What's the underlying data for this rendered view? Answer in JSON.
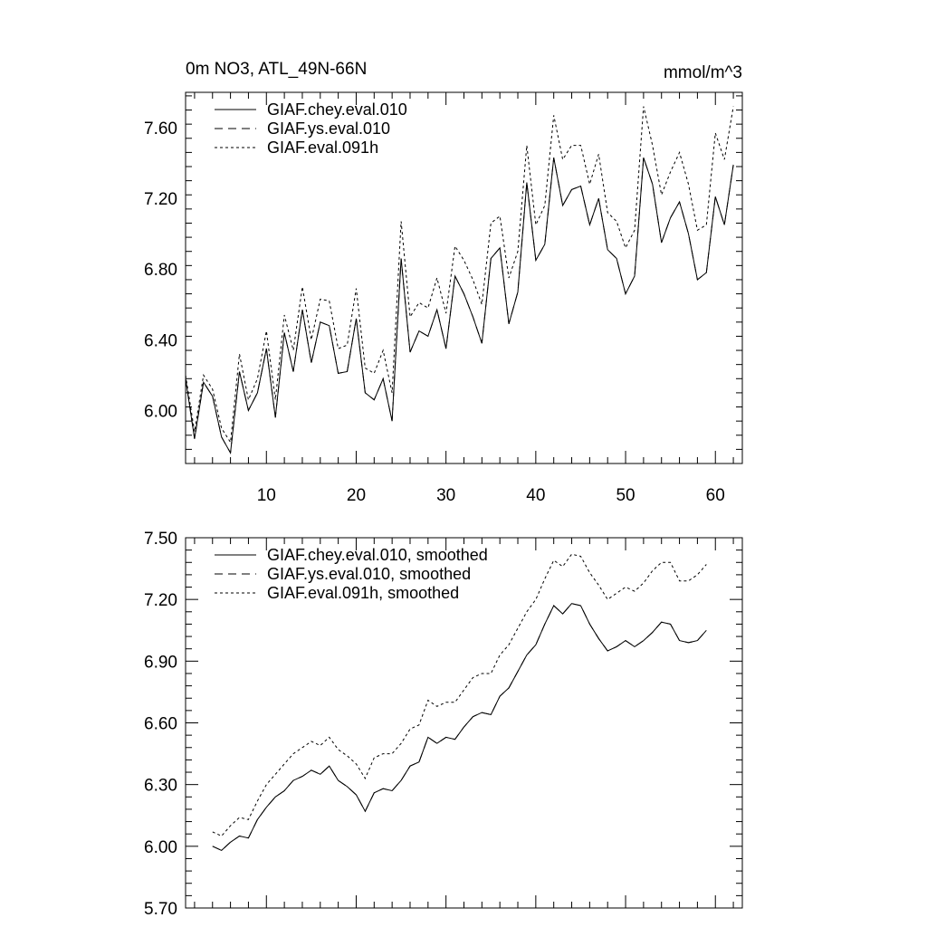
{
  "chart_data": [
    {
      "type": "line",
      "title_left": "0m NO3, ATL_49N-66N",
      "title_right": "mmol/m^3",
      "xlabel": "",
      "ylabel": "",
      "xlim": [
        1,
        63
      ],
      "ylim": [
        5.7,
        7.8
      ],
      "x_ticks": [
        10,
        20,
        30,
        40,
        50,
        60
      ],
      "x_tick_labels": [
        "10",
        "20",
        "30",
        "40",
        "50",
        "60"
      ],
      "y_ticks": [
        6.0,
        6.4,
        6.8,
        7.2,
        7.6
      ],
      "y_tick_labels": [
        "6.00",
        "6.40",
        "6.80",
        "7.20",
        "7.60"
      ],
      "grid": false,
      "legend_position": "top-left",
      "x": [
        1,
        2,
        3,
        4,
        5,
        6,
        7,
        8,
        9,
        10,
        11,
        12,
        13,
        14,
        15,
        16,
        17,
        18,
        19,
        20,
        21,
        22,
        23,
        24,
        25,
        26,
        27,
        28,
        29,
        30,
        31,
        32,
        33,
        34,
        35,
        36,
        37,
        38,
        39,
        40,
        41,
        42,
        43,
        44,
        45,
        46,
        47,
        48,
        49,
        50,
        51,
        52,
        53,
        54,
        55,
        56,
        57,
        58,
        59,
        60,
        61,
        62
      ],
      "series": [
        {
          "name": "GIAF.chey.eval.010",
          "style": "solid",
          "values": [
            6.18,
            5.84,
            6.16,
            6.08,
            5.85,
            5.76,
            6.22,
            6.0,
            6.1,
            6.35,
            5.96,
            6.44,
            6.22,
            6.57,
            6.27,
            6.5,
            6.48,
            6.21,
            6.22,
            6.52,
            6.1,
            6.06,
            6.18,
            5.94,
            6.86,
            6.33,
            6.45,
            6.42,
            6.57,
            6.35,
            6.76,
            6.66,
            6.53,
            6.38,
            6.86,
            6.92,
            6.49,
            6.67,
            7.29,
            6.85,
            6.94,
            7.43,
            7.16,
            7.25,
            7.27,
            7.05,
            7.2,
            6.91,
            6.86,
            6.66,
            6.76,
            7.43,
            7.28,
            6.95,
            7.09,
            7.18,
            7.0,
            6.74,
            6.78,
            7.21,
            7.05,
            7.39
          ]
        },
        {
          "name": "GIAF.ys.eval.010",
          "style": "dashed",
          "values": [
            6.18,
            5.84,
            6.16,
            6.08,
            5.85,
            5.76,
            6.22,
            6.0,
            6.1,
            6.35,
            5.96,
            6.44,
            6.22,
            6.57,
            6.27,
            6.5,
            6.48,
            6.21,
            6.22,
            6.52,
            6.1,
            6.06,
            6.18,
            5.94,
            6.86,
            6.33,
            6.45,
            6.42,
            6.57,
            6.35,
            6.76,
            6.66,
            6.53,
            6.38,
            6.86,
            6.92,
            6.49,
            6.67,
            7.29,
            6.85,
            6.94,
            7.43,
            7.16,
            7.25,
            7.27,
            7.05,
            7.2,
            6.91,
            6.86,
            6.66,
            6.76,
            7.43,
            7.28,
            6.95,
            7.09,
            7.18,
            7.0,
            6.74,
            6.78,
            7.21,
            7.05,
            7.39
          ]
        },
        {
          "name": "GIAF.eval.091h",
          "style": "dotted",
          "values": [
            6.2,
            5.88,
            6.2,
            6.12,
            5.9,
            5.82,
            6.32,
            6.06,
            6.18,
            6.45,
            6.06,
            6.54,
            6.34,
            6.7,
            6.4,
            6.63,
            6.62,
            6.35,
            6.37,
            6.69,
            6.24,
            6.21,
            6.34,
            6.1,
            7.07,
            6.53,
            6.61,
            6.58,
            6.75,
            6.55,
            6.93,
            6.85,
            6.74,
            6.6,
            7.06,
            7.1,
            6.75,
            6.9,
            7.5,
            7.05,
            7.16,
            7.67,
            7.42,
            7.5,
            7.5,
            7.28,
            7.45,
            7.12,
            7.07,
            6.92,
            7.02,
            7.72,
            7.5,
            7.22,
            7.35,
            7.46,
            7.28,
            7.02,
            7.05,
            7.57,
            7.42,
            7.72
          ]
        }
      ]
    },
    {
      "type": "line",
      "title_left": "",
      "title_right": "",
      "xlabel": "",
      "ylabel": "",
      "xlim": [
        1,
        63
      ],
      "ylim": [
        5.7,
        7.5
      ],
      "x_ticks": [
        10,
        20,
        30,
        40,
        50,
        60
      ],
      "x_tick_labels": [],
      "y_ticks": [
        5.7,
        6.0,
        6.3,
        6.6,
        6.9,
        7.2,
        7.5
      ],
      "y_tick_labels": [
        "5.70",
        "6.00",
        "6.30",
        "6.60",
        "6.90",
        "7.20",
        "7.50"
      ],
      "grid": false,
      "legend_position": "top-left",
      "x": [
        4,
        5,
        6,
        7,
        8,
        9,
        10,
        11,
        12,
        13,
        14,
        15,
        16,
        17,
        18,
        19,
        20,
        21,
        22,
        23,
        24,
        25,
        26,
        27,
        28,
        29,
        30,
        31,
        32,
        33,
        34,
        35,
        36,
        37,
        38,
        39,
        40,
        41,
        42,
        43,
        44,
        45,
        46,
        47,
        48,
        49,
        50,
        51,
        52,
        53,
        54,
        55,
        56,
        57,
        58,
        59
      ],
      "series": [
        {
          "name": "GIAF.chey.eval.010, smoothed",
          "style": "solid",
          "values": [
            6.0,
            5.98,
            6.02,
            6.05,
            6.04,
            6.13,
            6.19,
            6.24,
            6.27,
            6.32,
            6.34,
            6.37,
            6.35,
            6.39,
            6.32,
            6.29,
            6.25,
            6.17,
            6.26,
            6.28,
            6.27,
            6.32,
            6.39,
            6.41,
            6.53,
            6.5,
            6.53,
            6.52,
            6.58,
            6.63,
            6.65,
            6.64,
            6.73,
            6.77,
            6.85,
            6.93,
            6.98,
            7.08,
            7.17,
            7.13,
            7.18,
            7.17,
            7.08,
            7.01,
            6.95,
            6.97,
            7.0,
            6.97,
            7.0,
            7.04,
            7.09,
            7.08,
            7.0,
            6.99,
            7.0,
            7.05
          ]
        },
        {
          "name": "GIAF.ys.eval.010, smoothed",
          "style": "dashed",
          "values": [
            6.0,
            5.98,
            6.02,
            6.05,
            6.04,
            6.13,
            6.19,
            6.24,
            6.27,
            6.32,
            6.34,
            6.37,
            6.35,
            6.39,
            6.32,
            6.29,
            6.25,
            6.17,
            6.26,
            6.28,
            6.27,
            6.32,
            6.39,
            6.41,
            6.53,
            6.5,
            6.53,
            6.52,
            6.58,
            6.63,
            6.65,
            6.64,
            6.73,
            6.77,
            6.85,
            6.93,
            6.98,
            7.08,
            7.17,
            7.13,
            7.18,
            7.17,
            7.08,
            7.01,
            6.95,
            6.97,
            7.0,
            6.97,
            7.0,
            7.04,
            7.09,
            7.08,
            7.0,
            6.99,
            7.0,
            7.05
          ]
        },
        {
          "name": "GIAF.eval.091h, smoothed",
          "style": "dotted",
          "values": [
            6.07,
            6.05,
            6.1,
            6.14,
            6.13,
            6.22,
            6.3,
            6.35,
            6.4,
            6.45,
            6.48,
            6.51,
            6.49,
            6.53,
            6.47,
            6.44,
            6.4,
            6.33,
            6.43,
            6.45,
            6.45,
            6.5,
            6.57,
            6.59,
            6.71,
            6.68,
            6.7,
            6.7,
            6.76,
            6.82,
            6.84,
            6.84,
            6.93,
            6.98,
            7.06,
            7.14,
            7.2,
            7.3,
            7.39,
            7.36,
            7.42,
            7.41,
            7.33,
            7.27,
            7.2,
            7.23,
            7.26,
            7.24,
            7.28,
            7.34,
            7.38,
            7.38,
            7.29,
            7.29,
            7.32,
            7.37
          ]
        }
      ]
    }
  ]
}
